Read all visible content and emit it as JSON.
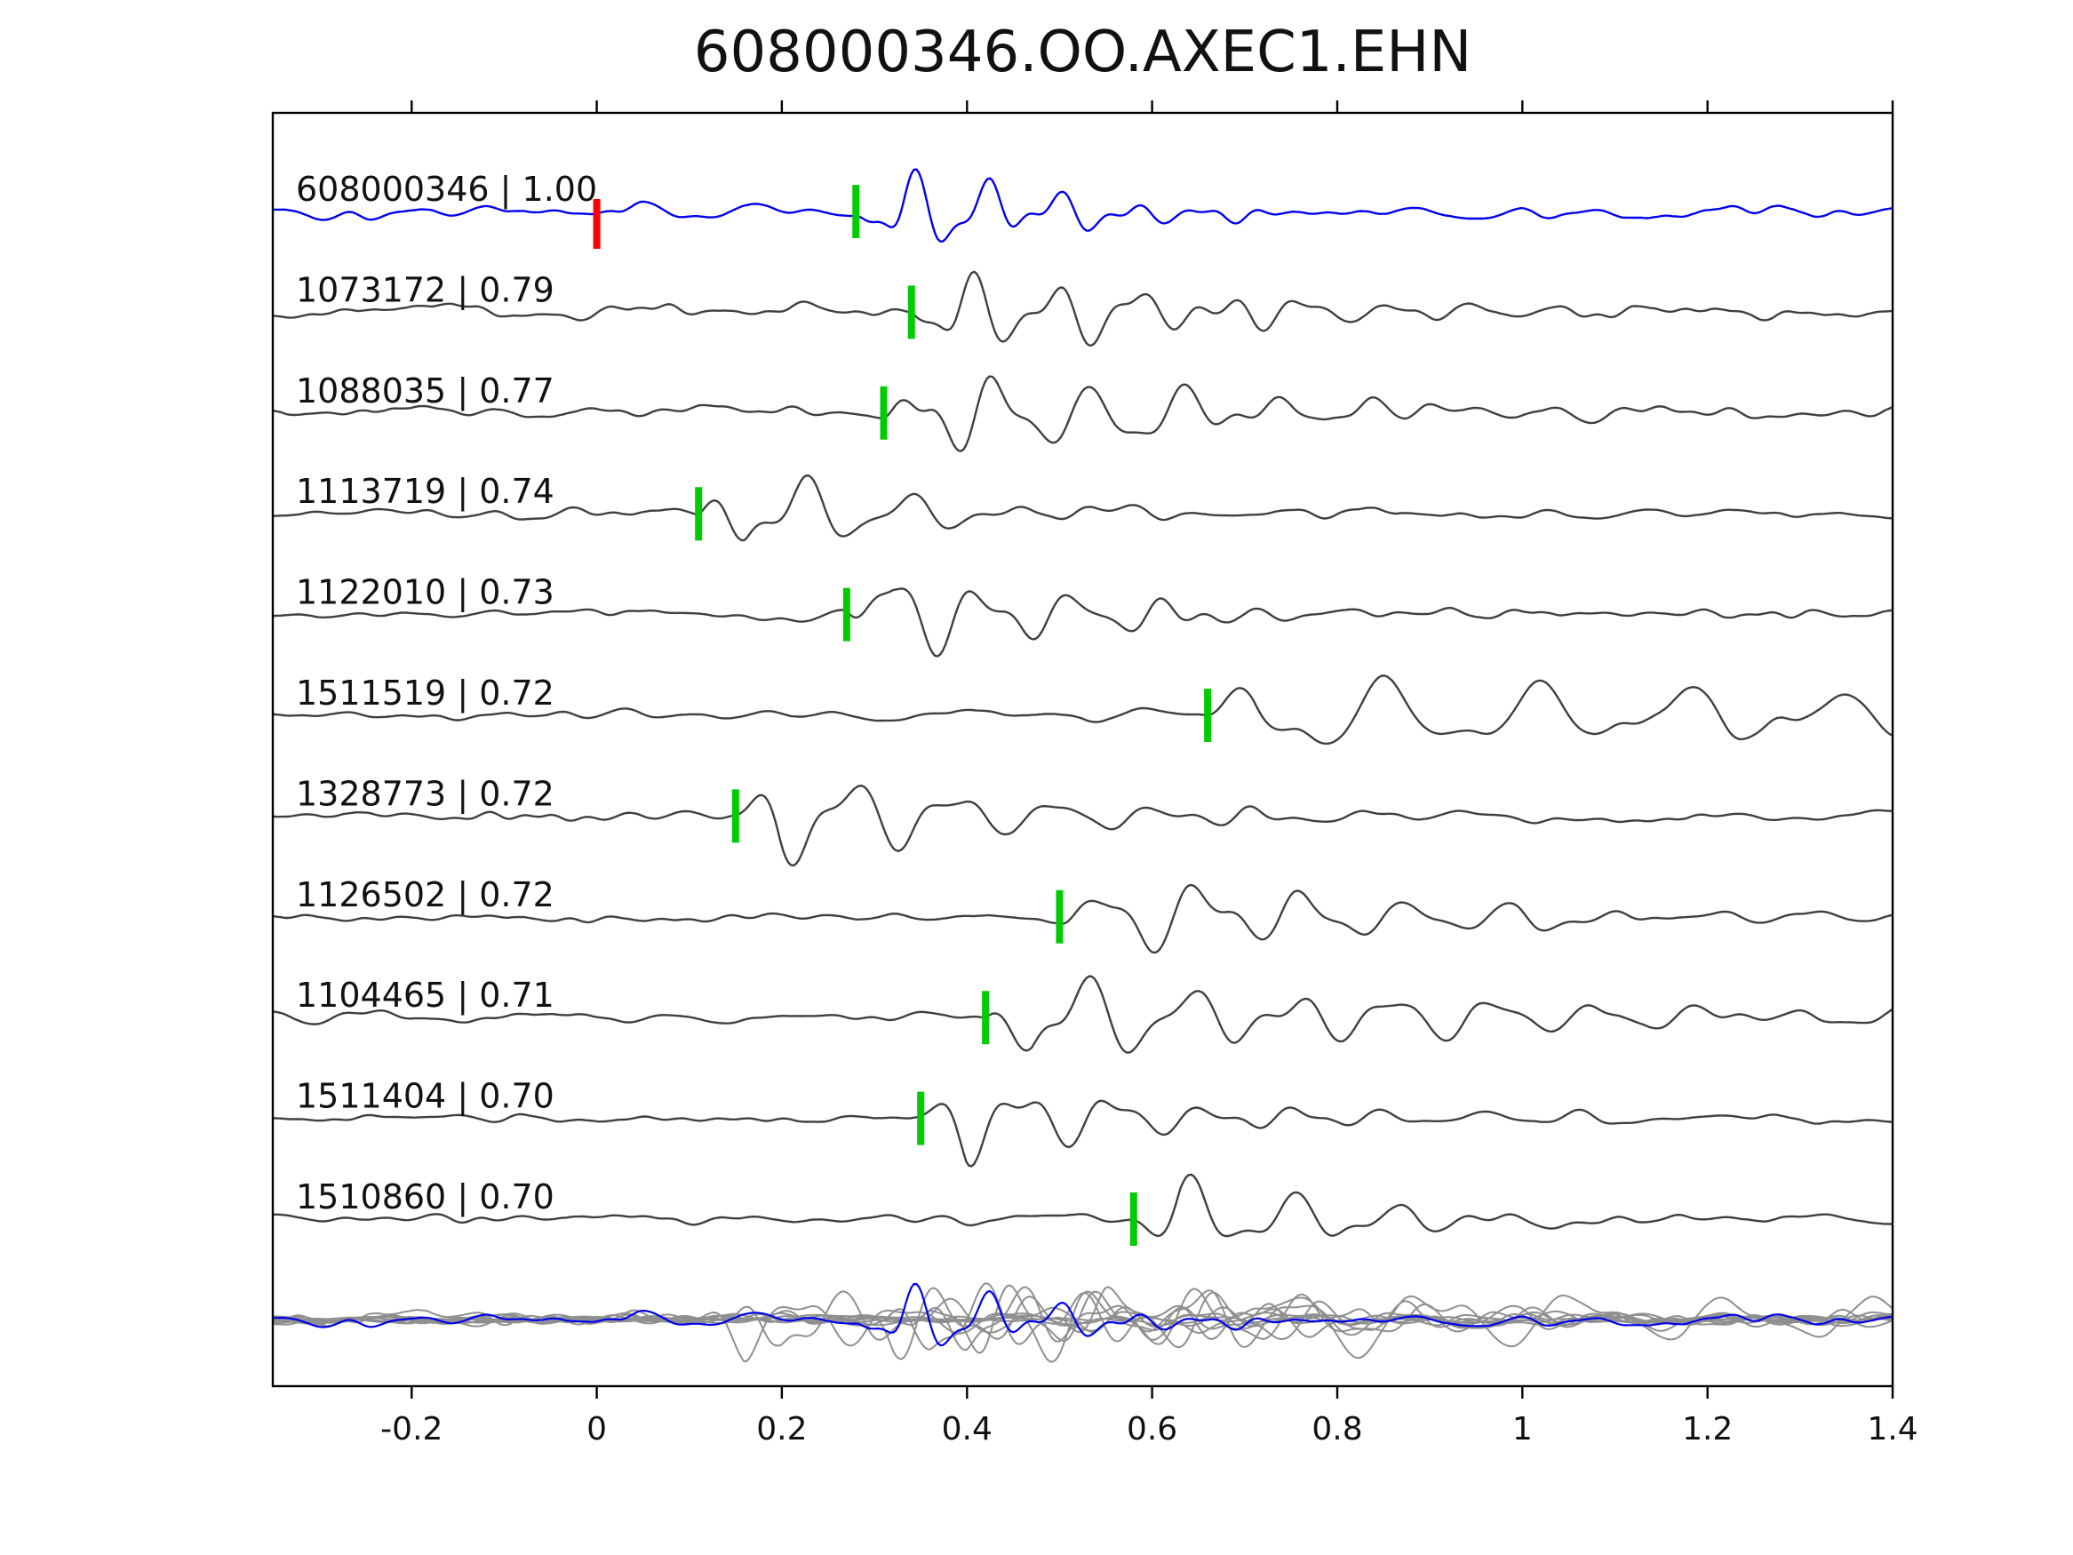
{
  "colors": {
    "template": "#0000ee",
    "detection": "#3f3f3f",
    "overlay": "#8f8f8f",
    "pick_marker": "#00cc00",
    "template_pick_marker": "#ff0000",
    "axis": "#000000",
    "text": "#111111"
  },
  "chart_data": {
    "type": "line",
    "title": "608000346.OO.AXEC1.EHN",
    "xlabel": "",
    "ylabel": "",
    "grid": false,
    "legend": "none",
    "xlim": [
      -0.35,
      1.4
    ],
    "x_ticks": [
      {
        "value": -0.2,
        "label": "-0.2"
      },
      {
        "value": 0,
        "label": "0"
      },
      {
        "value": 0.2,
        "label": "0.2"
      },
      {
        "value": 0.4,
        "label": "0.4"
      },
      {
        "value": 0.6,
        "label": "0.6"
      },
      {
        "value": 0.8,
        "label": "0.8"
      },
      {
        "value": 1,
        "label": "1"
      },
      {
        "value": 1.2,
        "label": "1.2"
      },
      {
        "value": 1.4,
        "label": "1.4"
      }
    ],
    "traces": [
      {
        "id": "608000346",
        "correlation": "1.00",
        "label": "608000346 | 1.00",
        "pick_time": 0.28,
        "template_pick_time": 0.0,
        "is_template": true,
        "gen": {
          "seed": 101,
          "amp": 50,
          "noise": 11,
          "freq": 13,
          "decay": 0.22
        }
      },
      {
        "id": "1073172",
        "correlation": "0.79",
        "label": "1073172 | 0.79",
        "pick_time": 0.34,
        "is_template": false,
        "gen": {
          "seed": 202,
          "amp": 52,
          "noise": 12,
          "freq": 11,
          "decay": 0.28
        }
      },
      {
        "id": "1088035",
        "correlation": "0.77",
        "label": "1088035 | 0.77",
        "pick_time": 0.31,
        "is_template": false,
        "gen": {
          "seed": 303,
          "amp": 55,
          "noise": 12,
          "freq": 10,
          "decay": 0.3
        }
      },
      {
        "id": "1113719",
        "correlation": "0.74",
        "label": "1113719 | 0.74",
        "pick_time": 0.11,
        "is_template": false,
        "gen": {
          "seed": 404,
          "amp": 55,
          "noise": 8,
          "freq": 9,
          "decay": 0.18
        }
      },
      {
        "id": "1122010",
        "correlation": "0.73",
        "label": "1122010 | 0.73",
        "pick_time": 0.27,
        "is_template": false,
        "gen": {
          "seed": 505,
          "amp": 55,
          "noise": 8,
          "freq": 10,
          "decay": 0.22
        }
      },
      {
        "id": "1511519",
        "correlation": "0.72",
        "label": "1511519 | 0.72",
        "pick_time": 0.66,
        "is_template": false,
        "gen": {
          "seed": 606,
          "amp": 52,
          "noise": 8,
          "freq": 6.2,
          "decay": 0.9
        }
      },
      {
        "id": "1328773",
        "correlation": "0.72",
        "label": "1328773 | 0.72",
        "pick_time": 0.15,
        "is_template": false,
        "gen": {
          "seed": 707,
          "amp": 52,
          "noise": 8,
          "freq": 9,
          "decay": 0.28
        }
      },
      {
        "id": "1126502",
        "correlation": "0.72",
        "label": "1126502 | 0.72",
        "pick_time": 0.5,
        "is_template": false,
        "gen": {
          "seed": 808,
          "amp": 52,
          "noise": 8,
          "freq": 9,
          "decay": 0.32
        }
      },
      {
        "id": "1104465",
        "correlation": "0.71",
        "label": "1104465 | 0.71",
        "pick_time": 0.42,
        "is_template": false,
        "gen": {
          "seed": 909,
          "amp": 52,
          "noise": 8,
          "freq": 9,
          "decay": 0.5
        }
      },
      {
        "id": "1511404",
        "correlation": "0.70",
        "label": "1511404 | 0.70",
        "pick_time": 0.35,
        "is_template": false,
        "gen": {
          "seed": 1010,
          "amp": 52,
          "noise": 7,
          "freq": 10,
          "decay": 0.22
        }
      },
      {
        "id": "1510860",
        "correlation": "0.70",
        "label": "1510860 | 0.70",
        "pick_time": 0.58,
        "is_template": false,
        "gen": {
          "seed": 1111,
          "amp": 50,
          "noise": 7,
          "freq": 9,
          "decay": 0.2
        }
      }
    ],
    "overlay_row": {
      "description": "All detection waveforms overlaid (gray) with the template waveform (blue)"
    }
  }
}
